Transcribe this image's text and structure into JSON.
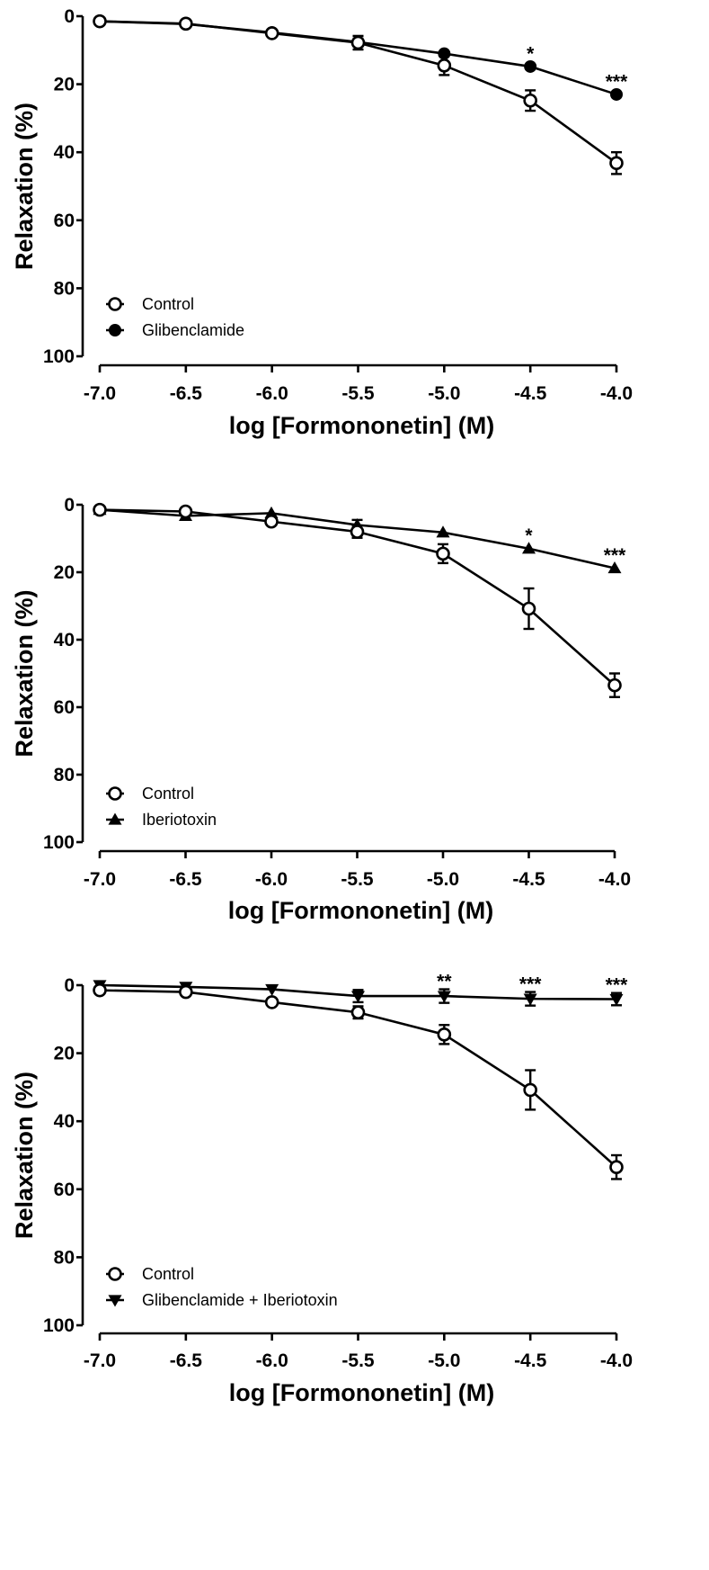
{
  "chart_data": [
    {
      "type": "line",
      "xlabel": "log [Formononetin] (M)",
      "ylabel": "Relaxation (%)",
      "xlim": [
        -7.0,
        -4.0
      ],
      "ylim": [
        0,
        100
      ],
      "y_inverted": true,
      "x_ticks": [
        "-7.0",
        "-6.5",
        "-6.0",
        "-5.5",
        "-5.0",
        "-4.5",
        "-4.0"
      ],
      "y_ticks": [
        "0",
        "20",
        "40",
        "60",
        "80",
        "100"
      ],
      "legend_position": "bottom-left",
      "x": [
        -7.0,
        -6.5,
        -6.0,
        -5.5,
        -5.0,
        -4.5,
        -4.0
      ],
      "series": [
        {
          "name": "Control",
          "marker": "open-circle",
          "values": [
            1.5,
            2.2,
            5.0,
            7.8,
            14.5,
            24.8,
            43.2
          ],
          "errors": [
            0.4,
            0.5,
            0.7,
            2.0,
            2.8,
            3.0,
            3.2
          ]
        },
        {
          "name": "Glibenclamide",
          "marker": "filled-circle",
          "values": [
            1.5,
            2.3,
            4.8,
            7.6,
            11.0,
            14.8,
            23.0
          ],
          "errors": [
            0.3,
            0.5,
            0.6,
            1.0,
            0.5,
            0.6,
            0.6
          ]
        }
      ],
      "annotations": [
        {
          "x": -4.5,
          "text": "*"
        },
        {
          "x": -4.0,
          "text": "***"
        }
      ]
    },
    {
      "type": "line",
      "xlabel": "log [Formononetin] (M)",
      "ylabel": "Relaxation (%)",
      "xlim": [
        -7.0,
        -4.0
      ],
      "ylim": [
        0,
        100
      ],
      "y_inverted": true,
      "x_ticks": [
        "-7.0",
        "-6.5",
        "-6.0",
        "-5.5",
        "-5.0",
        "-4.5",
        "-4.0"
      ],
      "y_ticks": [
        "0",
        "20",
        "40",
        "60",
        "80",
        "100"
      ],
      "legend_position": "bottom-left",
      "x": [
        -7.0,
        -6.5,
        -6.0,
        -5.5,
        -5.0,
        -4.5,
        -4.0
      ],
      "series": [
        {
          "name": "Control",
          "marker": "open-circle",
          "values": [
            1.5,
            2.0,
            5.0,
            8.0,
            14.5,
            30.8,
            53.5
          ],
          "errors": [
            0.4,
            0.5,
            0.7,
            1.8,
            2.8,
            6.0,
            3.5
          ]
        },
        {
          "name": "Iberiotoxin",
          "marker": "filled-triangle-up",
          "values": [
            1.5,
            3.3,
            2.5,
            6.0,
            8.2,
            13.0,
            18.8
          ],
          "errors": [
            0.3,
            0.5,
            0.3,
            1.5,
            0.5,
            0.6,
            0.6
          ]
        }
      ],
      "annotations": [
        {
          "x": -4.5,
          "text": "*"
        },
        {
          "x": -4.0,
          "text": "***"
        }
      ]
    },
    {
      "type": "line",
      "xlabel": "log [Formononetin] (M)",
      "ylabel": "Relaxation (%)",
      "xlim": [
        -7.0,
        -4.0
      ],
      "ylim": [
        0,
        100
      ],
      "y_inverted": true,
      "x_ticks": [
        "-7.0",
        "-6.5",
        "-6.0",
        "-5.5",
        "-5.0",
        "-4.5",
        "-4.0"
      ],
      "y_ticks": [
        "0",
        "20",
        "40",
        "60",
        "80",
        "100"
      ],
      "legend_position": "bottom-left",
      "x": [
        -7.0,
        -6.5,
        -6.0,
        -5.5,
        -5.0,
        -4.5,
        -4.0
      ],
      "series": [
        {
          "name": "Control",
          "marker": "open-circle",
          "values": [
            1.5,
            2.0,
            5.0,
            8.0,
            14.5,
            30.8,
            53.5
          ],
          "errors": [
            0.4,
            0.5,
            0.7,
            1.8,
            2.8,
            5.8,
            3.5
          ]
        },
        {
          "name": "Glibenclamide + Iberiotoxin",
          "marker": "filled-triangle-down",
          "values": [
            0.0,
            0.5,
            1.2,
            3.2,
            3.2,
            4.0,
            4.1
          ],
          "errors": [
            0.3,
            0.3,
            0.3,
            1.8,
            2.0,
            2.0,
            1.8
          ]
        }
      ],
      "annotations": [
        {
          "x": -5.0,
          "text": "**"
        },
        {
          "x": -4.5,
          "text": "***"
        },
        {
          "x": -4.0,
          "text": "***"
        }
      ]
    }
  ]
}
